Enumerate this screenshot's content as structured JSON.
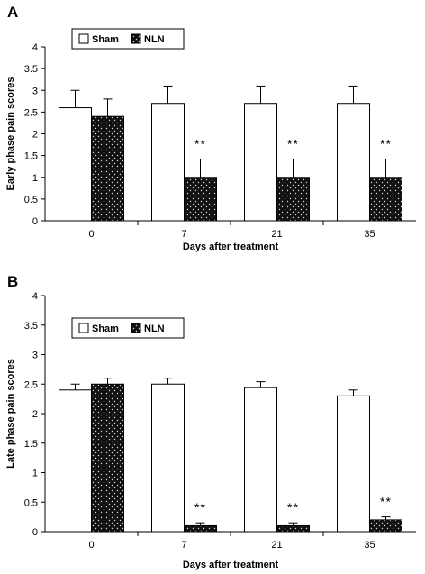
{
  "colors": {
    "sham_fill": "#ffffff",
    "nln_fill": "#111111",
    "nln_dots": "#d8d8d8",
    "axis": "#000000"
  },
  "chart_data": [
    {
      "type": "bar",
      "panel_label": "A",
      "categories": [
        "0",
        "7",
        "21",
        "35"
      ],
      "series": [
        {
          "name": "Sham",
          "values": [
            2.6,
            2.7,
            2.7,
            2.7
          ],
          "errors": [
            0.4,
            0.4,
            0.4,
            0.4
          ]
        },
        {
          "name": "NLN",
          "values": [
            2.4,
            1.0,
            1.0,
            1.0
          ],
          "errors": [
            0.4,
            0.42,
            0.42,
            0.42
          ]
        }
      ],
      "significance": [
        "",
        "**",
        "**",
        "**"
      ],
      "xlabel": "Days after treatment",
      "ylabel": "Early phase pain scores",
      "ylim": [
        0,
        4
      ],
      "yticks": [
        "0",
        "0.5",
        "1",
        "1.5",
        "2",
        "2.5",
        "3",
        "3.5",
        "4"
      ],
      "grid": false,
      "legend_position": "top-left"
    },
    {
      "type": "bar",
      "panel_label": "B",
      "categories": [
        "0",
        "7",
        "21",
        "35"
      ],
      "series": [
        {
          "name": "Sham",
          "values": [
            2.4,
            2.5,
            2.44,
            2.3
          ],
          "errors": [
            0.1,
            0.1,
            0.1,
            0.1
          ]
        },
        {
          "name": "NLN",
          "values": [
            2.5,
            0.1,
            0.1,
            0.2
          ],
          "errors": [
            0.1,
            0.05,
            0.05,
            0.05
          ]
        }
      ],
      "significance": [
        "",
        "**",
        "**",
        "**"
      ],
      "xlabel": "Days after treatment",
      "ylabel": "Late phase pain scores",
      "ylim": [
        0,
        4
      ],
      "yticks": [
        "0",
        "0.5",
        "1",
        "1.5",
        "2",
        "2.5",
        "3",
        "3.5",
        "4"
      ],
      "grid": false,
      "legend_position": "top-left"
    }
  ]
}
